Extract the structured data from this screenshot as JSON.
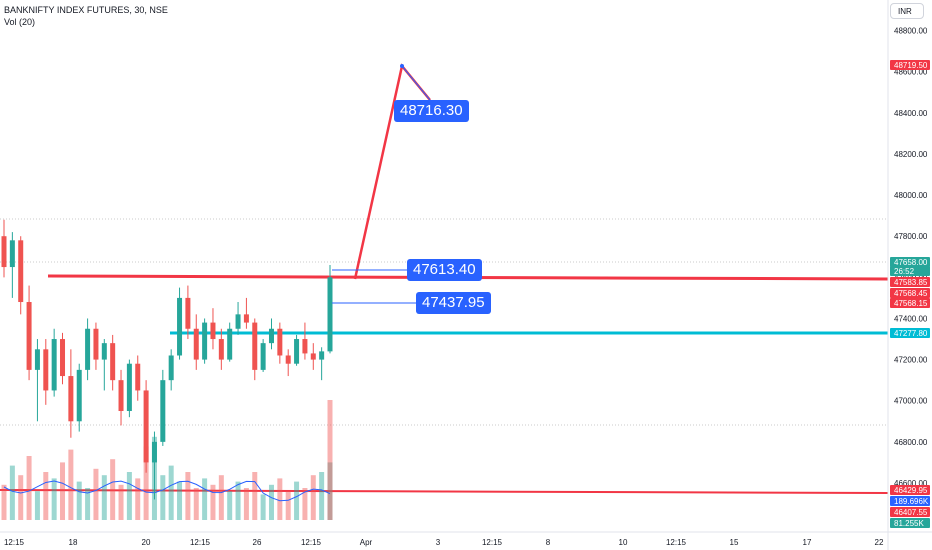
{
  "header": {
    "title": "BANKNIFTY INDEX FUTURES, 30, NSE",
    "volume_label": "Vol (20)",
    "currency": "INR"
  },
  "colors": {
    "up": "#26a69a",
    "down": "#ef5350",
    "resistance_line": "#f23645",
    "support_line": "#00bcd4",
    "callout_bg": "#2962ff",
    "volume_ma": "#2962ff"
  },
  "chart_data": {
    "type": "candlestick",
    "title": "BANKNIFTY INDEX FUTURES, 30, NSE",
    "ylim": [
      46420,
      48900
    ],
    "y_ticks": [
      46600,
      46800,
      47000,
      47200,
      47400,
      47600,
      47800,
      48000,
      48200,
      48400,
      48600,
      48800
    ],
    "x_tick_labels": [
      "12:15",
      "18",
      "20",
      "12:15",
      "26",
      "12:15",
      "Apr",
      "3",
      "12:15",
      "8",
      "10",
      "12:15",
      "15",
      "17",
      "22"
    ],
    "price_badges": [
      {
        "label": "48719.50",
        "color": "#f23645"
      },
      {
        "label": "47658.00",
        "color": "#26a69a"
      },
      {
        "label": "26:52",
        "color": "#26a69a"
      },
      {
        "label": "47583.85",
        "color": "#f23645"
      },
      {
        "label": "47568.45",
        "color": "#f23645"
      },
      {
        "label": "47568.15",
        "color": "#f23645"
      },
      {
        "label": "47277.80",
        "color": "#00bcd4"
      },
      {
        "label": "46429.95",
        "color": "#f23645"
      },
      {
        "label": "189.696K",
        "color": "#2962ff"
      },
      {
        "label": "46407.55",
        "color": "#f23645"
      },
      {
        "label": "81.255K",
        "color": "#26a69a"
      }
    ],
    "horizontal_levels": [
      {
        "name": "resistance",
        "value": 47580
      },
      {
        "name": "support",
        "value": 47277.8
      },
      {
        "name": "lower",
        "value": 46420
      }
    ],
    "annotations": [
      {
        "label": "48716.30"
      },
      {
        "label": "47613.40"
      },
      {
        "label": "47437.95"
      }
    ],
    "candles_ohlc": [
      [
        47800,
        47880,
        47600,
        47650
      ],
      [
        47650,
        47820,
        47500,
        47780
      ],
      [
        47780,
        47800,
        47420,
        47480
      ],
      [
        47480,
        47560,
        47100,
        47150
      ],
      [
        47150,
        47300,
        46900,
        47250
      ],
      [
        47250,
        47300,
        46980,
        47050
      ],
      [
        47050,
        47350,
        47020,
        47300
      ],
      [
        47300,
        47330,
        47080,
        47120
      ],
      [
        47120,
        47250,
        46820,
        46900
      ],
      [
        46900,
        47180,
        46850,
        47150
      ],
      [
        47150,
        47400,
        47100,
        47350
      ],
      [
        47350,
        47380,
        47150,
        47200
      ],
      [
        47200,
        47300,
        47050,
        47280
      ],
      [
        47280,
        47320,
        47050,
        47100
      ],
      [
        47100,
        47150,
        46880,
        46950
      ],
      [
        46950,
        47200,
        46920,
        47180
      ],
      [
        47180,
        47220,
        47000,
        47050
      ],
      [
        47050,
        47100,
        46650,
        46700
      ],
      [
        46700,
        46850,
        46520,
        46800
      ],
      [
        46800,
        47150,
        46780,
        47100
      ],
      [
        47100,
        47250,
        47050,
        47220
      ],
      [
        47220,
        47550,
        47200,
        47500
      ],
      [
        47500,
        47560,
        47300,
        47350
      ],
      [
        47350,
        47420,
        47150,
        47200
      ],
      [
        47200,
        47400,
        47180,
        47380
      ],
      [
        47380,
        47450,
        47250,
        47300
      ],
      [
        47300,
        47350,
        47150,
        47200
      ],
      [
        47200,
        47380,
        47190,
        47350
      ],
      [
        47350,
        47480,
        47320,
        47420
      ],
      [
        47420,
        47500,
        47350,
        47380
      ],
      [
        47380,
        47400,
        47100,
        47150
      ],
      [
        47150,
        47300,
        47140,
        47280
      ],
      [
        47280,
        47400,
        47250,
        47350
      ],
      [
        47350,
        47380,
        47180,
        47220
      ],
      [
        47220,
        47250,
        47120,
        47180
      ],
      [
        47180,
        47320,
        47170,
        47300
      ],
      [
        47300,
        47380,
        47200,
        47230
      ],
      [
        47230,
        47280,
        47150,
        47200
      ],
      [
        47200,
        47260,
        47100,
        47240
      ],
      [
        47240,
        47660,
        47230,
        47600
      ]
    ],
    "volume_ma_label": "Vol (20)"
  }
}
